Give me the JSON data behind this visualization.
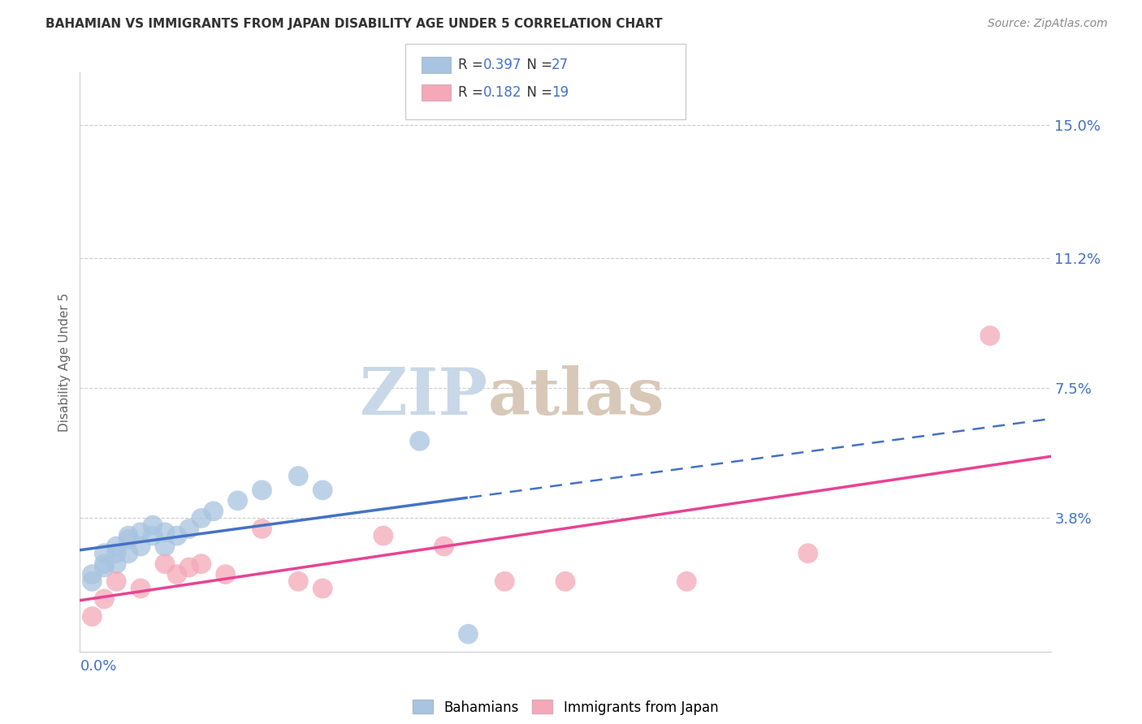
{
  "title": "BAHAMIAN VS IMMIGRANTS FROM JAPAN DISABILITY AGE UNDER 5 CORRELATION CHART",
  "source": "Source: ZipAtlas.com",
  "ylabel": "Disability Age Under 5",
  "ytick_values": [
    0.038,
    0.075,
    0.112,
    0.15
  ],
  "ytick_labels": [
    "3.8%",
    "7.5%",
    "11.2%",
    "15.0%"
  ],
  "xmin": 0.0,
  "xmax": 0.08,
  "ymin": 0.0,
  "ymax": 0.165,
  "bahamians_x": [
    0.001,
    0.001,
    0.002,
    0.002,
    0.002,
    0.003,
    0.003,
    0.003,
    0.004,
    0.004,
    0.004,
    0.005,
    0.005,
    0.006,
    0.006,
    0.007,
    0.007,
    0.008,
    0.009,
    0.01,
    0.011,
    0.013,
    0.015,
    0.018,
    0.02,
    0.028,
    0.032
  ],
  "bahamians_y": [
    0.02,
    0.022,
    0.024,
    0.025,
    0.028,
    0.025,
    0.028,
    0.03,
    0.028,
    0.032,
    0.033,
    0.03,
    0.034,
    0.033,
    0.036,
    0.03,
    0.034,
    0.033,
    0.035,
    0.038,
    0.04,
    0.043,
    0.046,
    0.05,
    0.046,
    0.06,
    0.005
  ],
  "japan_x": [
    0.001,
    0.002,
    0.003,
    0.005,
    0.007,
    0.008,
    0.009,
    0.01,
    0.012,
    0.015,
    0.018,
    0.02,
    0.025,
    0.03,
    0.035,
    0.04,
    0.05,
    0.06,
    0.075
  ],
  "japan_y": [
    0.01,
    0.015,
    0.02,
    0.018,
    0.025,
    0.022,
    0.024,
    0.025,
    0.022,
    0.035,
    0.02,
    0.018,
    0.033,
    0.03,
    0.02,
    0.02,
    0.02,
    0.028,
    0.09
  ],
  "bahamians_color": "#a8c4e0",
  "japan_color": "#f4a8b8",
  "trendline_blue_color": "#4472c4",
  "trendline_pink_color": "#e84393",
  "background_color": "#ffffff",
  "grid_color": "#cccccc",
  "watermark_zip_color": "#c8d8e8",
  "watermark_atlas_color": "#d8c8b8",
  "r1": "0.397",
  "n1": "27",
  "r2": "0.182",
  "n2": "19"
}
